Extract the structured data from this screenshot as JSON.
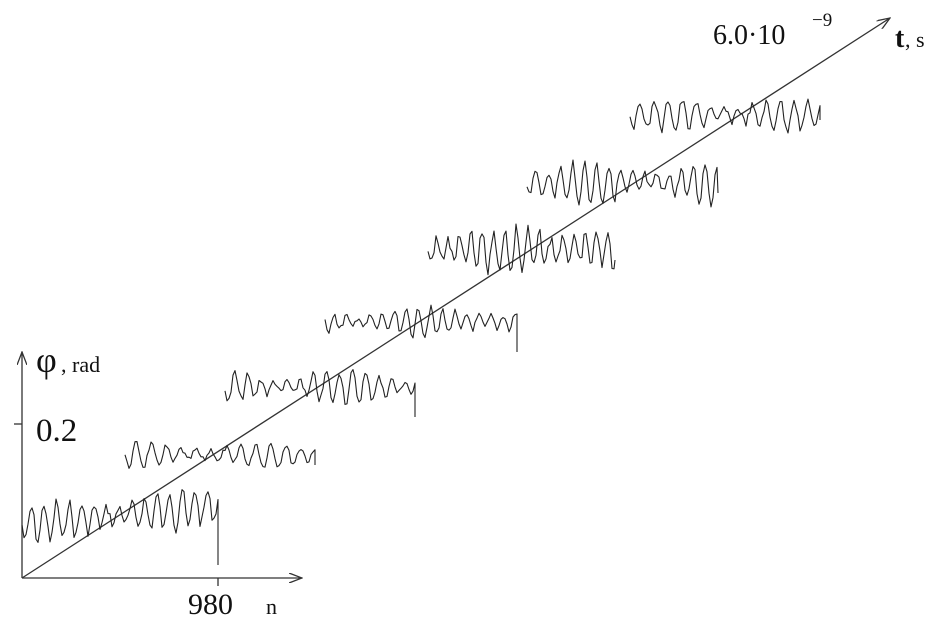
{
  "chart_data": {
    "type": "line",
    "title": "",
    "y_axis": {
      "symbol": "φ",
      "unit": ", rad",
      "tick_label": "0.2"
    },
    "x_axis": {
      "tick_label": "980",
      "label": "n"
    },
    "t_axis": {
      "tick_label": "6.0·10",
      "exponent": "−9",
      "symbol": "t",
      "unit": ", s"
    },
    "series_count": 8,
    "trace_color": "#222222"
  }
}
